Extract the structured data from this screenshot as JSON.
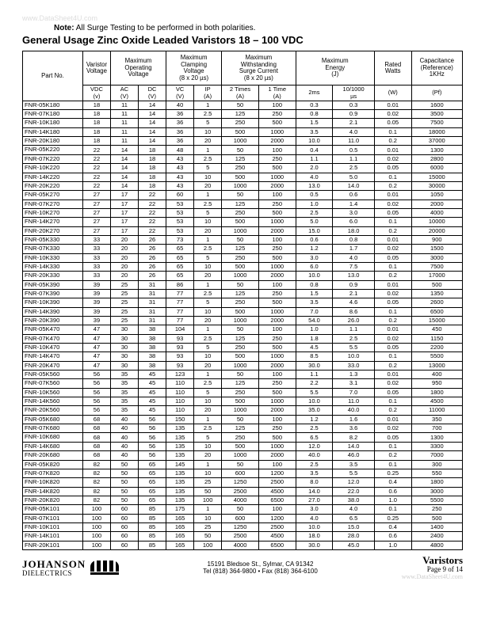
{
  "watermark_top": "www.DataSheet4U.com",
  "note_label": "Note:",
  "note_text": "All Surge Testing to be performed in both polarities.",
  "title": "General Usage Zinc Oxide Leaded Varistors 18 – 100 VDC",
  "headers": {
    "group": [
      "Part No.",
      "Varistor\nVoltage",
      "Maximum\nOperating\nVoltage",
      "Maximum\nClamping\nVoltage\n(8 x 20 µs)",
      "Maximum\nWithstanding\nSurge Current\n(8 x 20 µs)",
      "Maximum\nEnergy\n(J)",
      "Rated\nWatts",
      "Capacitance\n(Reference)\n1KHz"
    ],
    "sub": [
      "",
      "VDC\n(v)",
      "AC\n(V)",
      "DC\n(V)",
      "VC\n(V)",
      "IP\n(A)",
      "2 Times\n(A)",
      "1 Time\n(A)",
      "2ms",
      "10/1000\nµs",
      "(W)",
      "(Pf)"
    ]
  },
  "rows": [
    [
      "FNR-05K180",
      "18",
      "11",
      "14",
      "40",
      "1",
      "50",
      "100",
      "0.3",
      "0.3",
      "0.01",
      "1600"
    ],
    [
      "FNR-07K180",
      "18",
      "11",
      "14",
      "36",
      "2.5",
      "125",
      "250",
      "0.8",
      "0.9",
      "0.02",
      "3500"
    ],
    [
      "FNR-10K180",
      "18",
      "11",
      "14",
      "36",
      "5",
      "250",
      "500",
      "1.5",
      "2.1",
      "0.05",
      "7500"
    ],
    [
      "FNR-14K180",
      "18",
      "11",
      "14",
      "36",
      "10",
      "500",
      "1000",
      "3.5",
      "4.0",
      "0.1",
      "18000"
    ],
    [
      "FNR-20K180",
      "18",
      "11",
      "14",
      "36",
      "20",
      "1000",
      "2000",
      "10.0",
      "11.0",
      "0.2",
      "37000"
    ],
    [
      "FNR-05K220",
      "22",
      "14",
      "18",
      "48",
      "1",
      "50",
      "100",
      "0.4",
      "0.5",
      "0.01",
      "1300"
    ],
    [
      "FNR-07K220",
      "22",
      "14",
      "18",
      "43",
      "2.5",
      "125",
      "250",
      "1.1",
      "1.1",
      "0.02",
      "2800"
    ],
    [
      "FNR-10K220",
      "22",
      "14",
      "18",
      "43",
      "5",
      "250",
      "500",
      "2.0",
      "2.5",
      "0.05",
      "6000"
    ],
    [
      "FNR-14K220",
      "22",
      "14",
      "18",
      "43",
      "10",
      "500",
      "1000",
      "4.0",
      "5.0",
      "0.1",
      "15000"
    ],
    [
      "FNR-20K220",
      "22",
      "14",
      "18",
      "43",
      "20",
      "1000",
      "2000",
      "13.0",
      "14.0",
      "0.2",
      "30000"
    ],
    [
      "FNR-05K270",
      "27",
      "17",
      "22",
      "60",
      "1",
      "50",
      "100",
      "0.5",
      "0.6",
      "0.01",
      "1050"
    ],
    [
      "FNR-07K270",
      "27",
      "17",
      "22",
      "53",
      "2.5",
      "125",
      "250",
      "1.0",
      "1.4",
      "0.02",
      "2000"
    ],
    [
      "FNR-10K270",
      "27",
      "17",
      "22",
      "53",
      "5",
      "250",
      "500",
      "2.5",
      "3.0",
      "0.05",
      "4000"
    ],
    [
      "FNR-14K270",
      "27",
      "17",
      "22",
      "53",
      "10",
      "500",
      "1000",
      "5.0",
      "6.0",
      "0.1",
      "10000"
    ],
    [
      "FNR-20K270",
      "27",
      "17",
      "22",
      "53",
      "20",
      "1000",
      "2000",
      "15.0",
      "18.0",
      "0.2",
      "20000"
    ],
    [
      "FNR-05K330",
      "33",
      "20",
      "26",
      "73",
      "1",
      "50",
      "100",
      "0.6",
      "0.8",
      "0.01",
      "900"
    ],
    [
      "FNR-07K330",
      "33",
      "20",
      "26",
      "65",
      "2.5",
      "125",
      "250",
      "1.2",
      "1.7",
      "0.02",
      "1500"
    ],
    [
      "FNR-10K330",
      "33",
      "20",
      "26",
      "65",
      "5",
      "250",
      "500",
      "3.0",
      "4.0",
      "0.05",
      "3000"
    ],
    [
      "FNR-14K330",
      "33",
      "20",
      "26",
      "65",
      "10",
      "500",
      "1000",
      "6.0",
      "7.5",
      "0.1",
      "7500"
    ],
    [
      "FNR-20K330",
      "33",
      "20",
      "26",
      "65",
      "20",
      "1000",
      "2000",
      "10.0",
      "13.0",
      "0.2",
      "17000"
    ],
    [
      "FNR-05K390",
      "39",
      "25",
      "31",
      "86",
      "1",
      "50",
      "100",
      "0.8",
      "0.9",
      "0.01",
      "500"
    ],
    [
      "FNR-07K390",
      "39",
      "25",
      "31",
      "77",
      "2.5",
      "125",
      "250",
      "1.5",
      "2.1",
      "0.02",
      "1350"
    ],
    [
      "FNR-10K390",
      "39",
      "25",
      "31",
      "77",
      "5",
      "250",
      "500",
      "3.5",
      "4.6",
      "0.05",
      "2600"
    ],
    [
      "FNR-14K390",
      "39",
      "25",
      "31",
      "77",
      "10",
      "500",
      "1000",
      "7.0",
      "8.6",
      "0.1",
      "6500"
    ],
    [
      "FNR-20K390",
      "39",
      "25",
      "31",
      "77",
      "20",
      "1000",
      "2000",
      "54.0",
      "26.0",
      "0.2",
      "15000"
    ],
    [
      "FNR-05K470",
      "47",
      "30",
      "38",
      "104",
      "1",
      "50",
      "100",
      "1.0",
      "1.1",
      "0.01",
      "450"
    ],
    [
      "FNR-07K470",
      "47",
      "30",
      "38",
      "93",
      "2.5",
      "125",
      "250",
      "1.8",
      "2.5",
      "0.02",
      "1150"
    ],
    [
      "FNR-10K470",
      "47",
      "30",
      "38",
      "93",
      "5",
      "250",
      "500",
      "4.5",
      "5.5",
      "0.05",
      "2200"
    ],
    [
      "FNR-14K470",
      "47",
      "30",
      "38",
      "93",
      "10",
      "500",
      "1000",
      "8.5",
      "10.0",
      "0.1",
      "5500"
    ],
    [
      "FNR-20K470",
      "47",
      "30",
      "38",
      "93",
      "20",
      "1000",
      "2000",
      "30.0",
      "33.0",
      "0.2",
      "13000"
    ],
    [
      "FNR-05K560",
      "56",
      "35",
      "45",
      "123",
      "1",
      "50",
      "100",
      "1.1",
      "1.3",
      "0.01",
      "400"
    ],
    [
      "FNR-07K560",
      "56",
      "35",
      "45",
      "110",
      "2.5",
      "125",
      "250",
      "2.2",
      "3.1",
      "0.02",
      "950"
    ],
    [
      "FNR-10K560",
      "56",
      "35",
      "45",
      "110",
      "5",
      "250",
      "500",
      "5.5",
      "7.0",
      "0.05",
      "1800"
    ],
    [
      "FNR-14K560",
      "56",
      "35",
      "45",
      "110",
      "10",
      "500",
      "1000",
      "10.0",
      "11.0",
      "0.1",
      "4500"
    ],
    [
      "FNR-20K560",
      "56",
      "35",
      "45",
      "110",
      "20",
      "1000",
      "2000",
      "35.0",
      "40.0",
      "0.2",
      "11000"
    ],
    [
      "FNR-05K680",
      "68",
      "40",
      "56",
      "150",
      "1",
      "50",
      "100",
      "1.2",
      "1.6",
      "0.01",
      "350"
    ],
    [
      "FNR-07K680",
      "68",
      "40",
      "56",
      "135",
      "2.5",
      "125",
      "250",
      "2.5",
      "3.6",
      "0.02",
      "700"
    ],
    [
      "FNR-10K680",
      "68",
      "40",
      "56",
      "135",
      "5",
      "250",
      "500",
      "6.5",
      "8.2",
      "0.05",
      "1300"
    ],
    [
      "FNR-14K680",
      "68",
      "40",
      "56",
      "135",
      "10",
      "500",
      "1000",
      "12.0",
      "14.0",
      "0.1",
      "3300"
    ],
    [
      "FNR-20K680",
      "68",
      "40",
      "56",
      "135",
      "20",
      "1000",
      "2000",
      "40.0",
      "46.0",
      "0.2",
      "7000"
    ],
    [
      "FNR-05K820",
      "82",
      "50",
      "65",
      "145",
      "1",
      "50",
      "100",
      "2.5",
      "3.5",
      "0.1",
      "300"
    ],
    [
      "FNR-07K820",
      "82",
      "50",
      "65",
      "135",
      "10",
      "600",
      "1200",
      "3.5",
      "5.5",
      "0.25",
      "550"
    ],
    [
      "FNR-10K820",
      "82",
      "50",
      "65",
      "135",
      "25",
      "1250",
      "2500",
      "8.0",
      "12.0",
      "0.4",
      "1800"
    ],
    [
      "FNR-14K820",
      "82",
      "50",
      "65",
      "135",
      "50",
      "2500",
      "4500",
      "14.0",
      "22.0",
      "0.6",
      "3000"
    ],
    [
      "FNR-20K820",
      "82",
      "50",
      "65",
      "135",
      "100",
      "4000",
      "6500",
      "27.0",
      "38.0",
      "1.0",
      "5500"
    ],
    [
      "FNR-05K101",
      "100",
      "60",
      "85",
      "175",
      "1",
      "50",
      "100",
      "3.0",
      "4.0",
      "0.1",
      "250"
    ],
    [
      "FNR-07K101",
      "100",
      "60",
      "85",
      "165",
      "10",
      "600",
      "1200",
      "4.0",
      "6.5",
      "0.25",
      "500"
    ],
    [
      "FNR-10K101",
      "100",
      "60",
      "85",
      "165",
      "25",
      "1250",
      "2500",
      "10.0",
      "15.0",
      "0.4",
      "1400"
    ],
    [
      "FNR-14K101",
      "100",
      "60",
      "85",
      "165",
      "50",
      "2500",
      "4500",
      "18.0",
      "28.0",
      "0.6",
      "2400"
    ],
    [
      "FNR-20K101",
      "100",
      "60",
      "85",
      "165",
      "100",
      "4000",
      "6500",
      "30.0",
      "45.0",
      "1.0",
      "4800"
    ]
  ],
  "footer": {
    "company": "JOHANSON",
    "subtitle": "DIELECTRICS",
    "addr1": "15191 Bledsoe St., Sylmar, CA 91342",
    "addr2": "Tel (818) 364-9800 • Fax (818) 364-6100",
    "right_big": "Varistors",
    "right_small": "Page 9 of  14",
    "watermark": "www.DataSheet4U.com"
  }
}
